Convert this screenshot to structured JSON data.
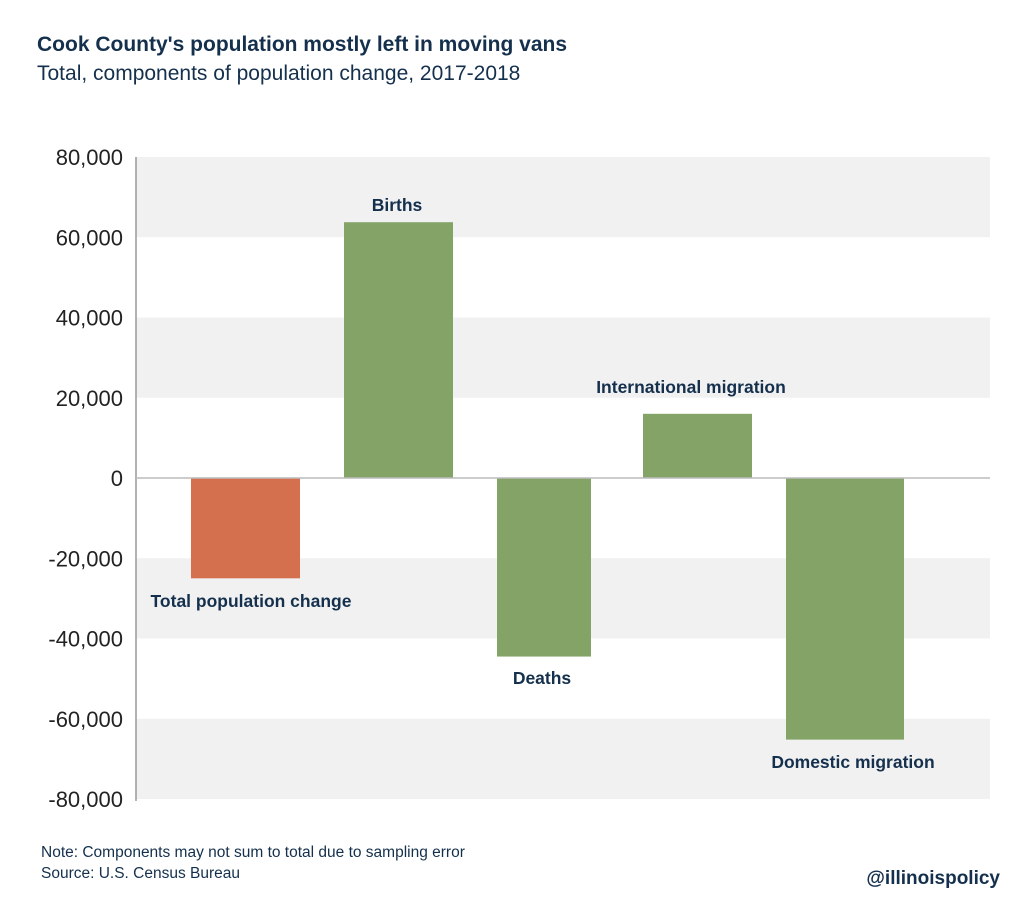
{
  "title": "Cook County's population mostly left in moving vans",
  "subtitle": "Total, components of population change, 2017-2018",
  "note": "Note: Components may not sum to total due to sampling error",
  "source": "Source: U.S. Census Bureau",
  "handle": "@illinoispolicy",
  "colors": {
    "total": "#d4704e",
    "component": "#84a367",
    "text": "#14304d",
    "band": "#f1f1f1"
  },
  "chart_data": {
    "type": "bar",
    "title": "Cook County's population mostly left in moving vans",
    "subtitle": "Total, components of population change, 2017-2018",
    "categories": [
      "Total population change",
      "Births",
      "Deaths",
      "International migration",
      "Domestic migration"
    ],
    "values": [
      -25000,
      63750,
      -44500,
      16000,
      -65200
    ],
    "ylim": [
      -80000,
      80000
    ],
    "yticks": [
      "80,000",
      "60,000",
      "40,000",
      "20,000",
      "0",
      "-20,000",
      "-40,000",
      "-60,000",
      "-80,000"
    ],
    "grid": "alternating bands",
    "legend": "none",
    "xlabel": "",
    "ylabel": ""
  }
}
